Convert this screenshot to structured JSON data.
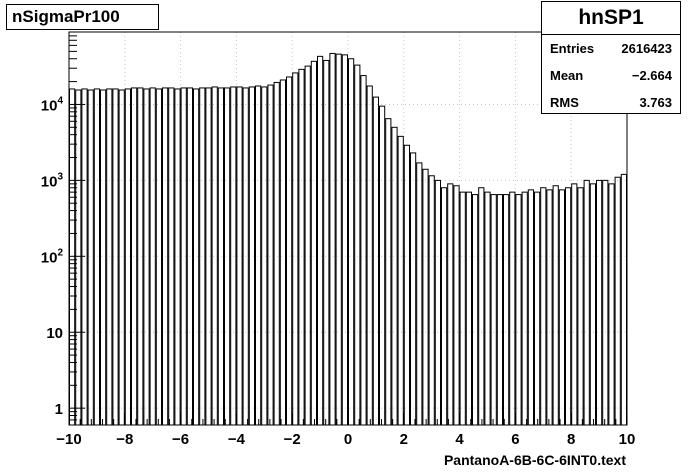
{
  "title_box": {
    "text": "nSigmaPr100"
  },
  "stats": {
    "name": "hnSP1",
    "rows": [
      {
        "label": "Entries",
        "value": "2616423"
      },
      {
        "label": "Mean",
        "value": "−2.664"
      },
      {
        "label": "RMS",
        "value": "3.763"
      }
    ]
  },
  "chart_data": {
    "type": "bar",
    "title": "nSigmaPr100",
    "xlabel": "PantanoA-6B-6C-6INT0.text",
    "ylabel": "",
    "xlim": [
      -10,
      10
    ],
    "ylim": [
      0.6,
      90000
    ],
    "yscale": "log",
    "grid": true,
    "x_ticks": [
      "−10",
      "−8",
      "−6",
      "−4",
      "−2",
      "0",
      "2",
      "4",
      "6",
      "8",
      "10"
    ],
    "y_ticks": [
      {
        "value": 1,
        "base": "1",
        "exp": ""
      },
      {
        "value": 10,
        "base": "10",
        "exp": ""
      },
      {
        "value": 100,
        "base": "10",
        "exp": "2"
      },
      {
        "value": 1000,
        "base": "10",
        "exp": "3"
      },
      {
        "value": 10000,
        "base": "10",
        "exp": "4"
      }
    ],
    "bin_edges": [
      -10,
      10
    ],
    "values": [
      16000,
      15500,
      16000,
      15500,
      16000,
      15500,
      16000,
      16000,
      15500,
      16000,
      16500,
      16500,
      16000,
      16500,
      16000,
      16500,
      16500,
      16000,
      16500,
      16500,
      16000,
      16500,
      16500,
      17000,
      16500,
      16500,
      17000,
      17000,
      16500,
      17000,
      17500,
      17000,
      18000,
      19500,
      21000,
      23000,
      26000,
      29000,
      32000,
      37000,
      43000,
      38000,
      47000,
      46000,
      45000,
      40000,
      33000,
      24000,
      17500,
      12500,
      9500,
      6500,
      5000,
      3800,
      2900,
      2300,
      1700,
      1400,
      1150,
      1000,
      800,
      900,
      850,
      700,
      700,
      650,
      800,
      700,
      650,
      650,
      650,
      700,
      650,
      700,
      750,
      700,
      800,
      750,
      850,
      750,
      800,
      900,
      800,
      1000,
      900,
      1000,
      1000,
      900,
      1100,
      1200
    ]
  }
}
